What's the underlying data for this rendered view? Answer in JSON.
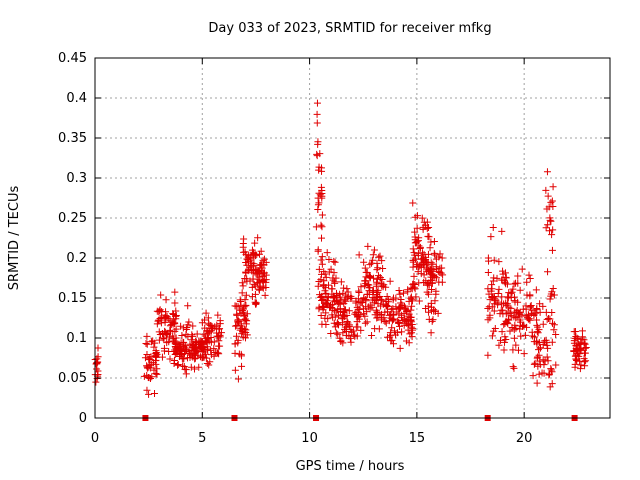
{
  "chart_data": {
    "type": "scatter",
    "title": "Day 033 of 2023, SRMTID for receiver mfkg",
    "xlabel": "GPS time / hours",
    "ylabel": "SRMTID / TECUs",
    "xlim": [
      0,
      24
    ],
    "ylim": [
      0,
      0.45
    ],
    "xticks": [
      0,
      5,
      10,
      15,
      20
    ],
    "yticks": [
      0,
      0.05,
      0.1,
      0.15,
      0.2,
      0.25,
      0.3,
      0.35,
      0.4,
      0.45
    ],
    "xtick_labels": [
      "0",
      "5",
      "10",
      "15",
      "20"
    ],
    "ytick_labels": [
      "0",
      "0.05",
      "0.1",
      "0.15",
      "0.2",
      "0.25",
      "0.3",
      "0.35",
      "0.4",
      "0.45"
    ],
    "grid": true,
    "marker": "+",
    "color": "#e00000",
    "gap_markers_x": [
      2.35,
      6.5,
      10.3,
      18.3,
      22.35
    ],
    "clusters": [
      {
        "x": [
          0.0,
          0.15
        ],
        "center": 0.06,
        "spread": 0.025,
        "n": 18
      },
      {
        "x": [
          2.3,
          2.9
        ],
        "center": 0.07,
        "spread": 0.03,
        "n": 45
      },
      {
        "x": [
          2.9,
          3.8
        ],
        "center": 0.115,
        "spread": 0.03,
        "n": 70
      },
      {
        "x": [
          3.7,
          4.4
        ],
        "center": 0.09,
        "spread": 0.03,
        "n": 55
      },
      {
        "x": [
          4.4,
          5.1
        ],
        "center": 0.085,
        "spread": 0.02,
        "n": 60
      },
      {
        "x": [
          5.0,
          5.9
        ],
        "center": 0.1,
        "spread": 0.025,
        "n": 65
      },
      {
        "x": [
          6.5,
          7.1
        ],
        "center": 0.115,
        "spread": 0.04,
        "n": 60
      },
      {
        "x": [
          6.9,
          7.4
        ],
        "center": 0.19,
        "spread": 0.03,
        "n": 30
      },
      {
        "x": [
          7.3,
          8.0
        ],
        "center": 0.18,
        "spread": 0.03,
        "n": 70
      },
      {
        "x": [
          10.3,
          10.6
        ],
        "center": 0.3,
        "spread": 0.08,
        "n": 30
      },
      {
        "x": [
          10.4,
          11.2
        ],
        "center": 0.155,
        "spread": 0.035,
        "n": 80
      },
      {
        "x": [
          11.2,
          12.3
        ],
        "center": 0.13,
        "spread": 0.03,
        "n": 90
      },
      {
        "x": [
          12.3,
          13.5
        ],
        "center": 0.16,
        "spread": 0.04,
        "n": 110
      },
      {
        "x": [
          13.5,
          14.8
        ],
        "center": 0.13,
        "spread": 0.035,
        "n": 110
      },
      {
        "x": [
          14.8,
          15.6
        ],
        "center": 0.2,
        "spread": 0.05,
        "n": 80
      },
      {
        "x": [
          15.5,
          16.2
        ],
        "center": 0.17,
        "spread": 0.04,
        "n": 60
      },
      {
        "x": [
          18.3,
          19.2
        ],
        "center": 0.15,
        "spread": 0.05,
        "n": 70
      },
      {
        "x": [
          19.2,
          20.3
        ],
        "center": 0.13,
        "spread": 0.045,
        "n": 80
      },
      {
        "x": [
          20.3,
          21.5
        ],
        "center": 0.11,
        "spread": 0.05,
        "n": 80
      },
      {
        "x": [
          21.0,
          21.4
        ],
        "center": 0.26,
        "spread": 0.05,
        "n": 18
      },
      {
        "x": [
          22.3,
          22.9
        ],
        "center": 0.085,
        "spread": 0.02,
        "n": 55
      }
    ]
  }
}
